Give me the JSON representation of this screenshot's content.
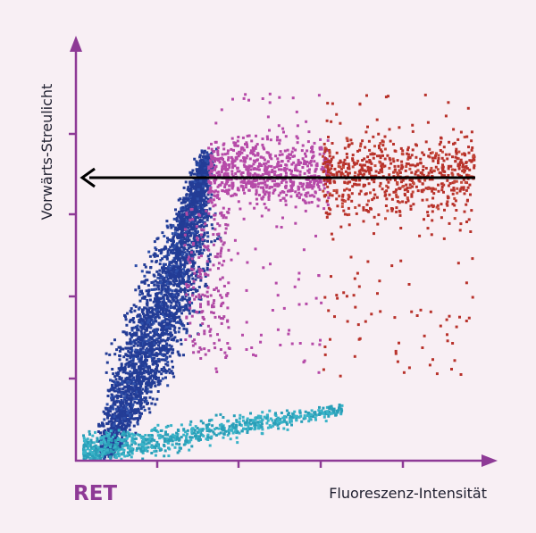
{
  "y_axis_label": "Vorwärts-Streulicht",
  "x_axis_label": "Fluoreszenz-Intensität",
  "panel_label": "RET"
}
